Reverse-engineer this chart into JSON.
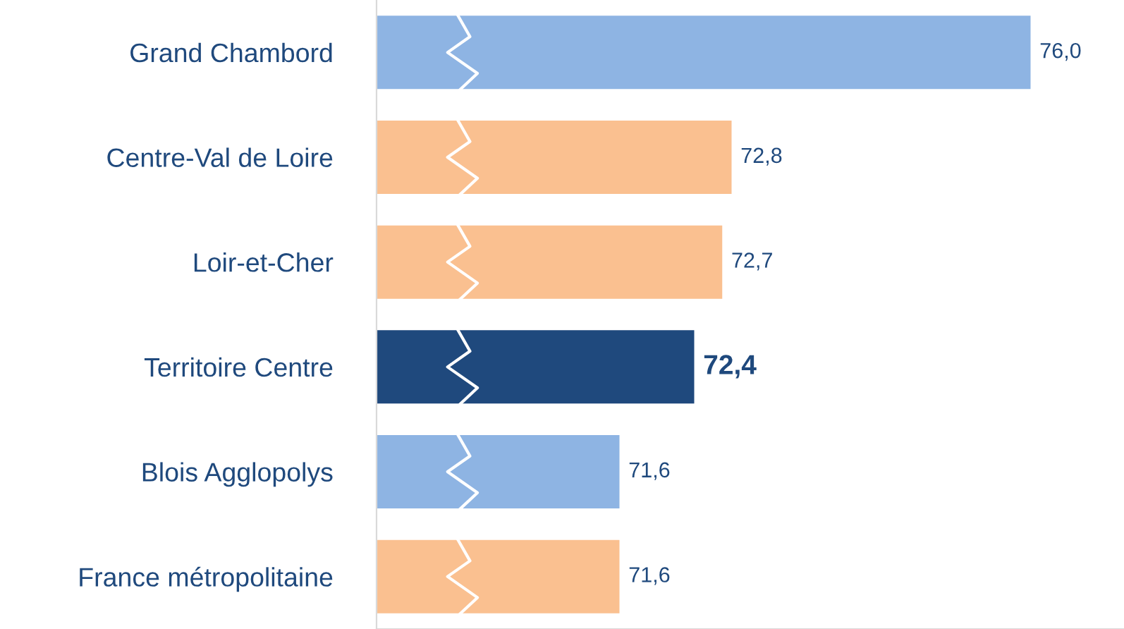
{
  "chart_data": {
    "type": "bar",
    "orientation": "horizontal",
    "categories": [
      "Grand Chambord",
      "Centre-Val de Loire",
      "Loir-et-Cher",
      "Territoire Centre",
      "Blois Agglopolys",
      "France métropolitaine"
    ],
    "values": [
      76.0,
      72.8,
      72.7,
      72.4,
      71.6,
      71.6
    ],
    "colors": [
      "#8eb4e3",
      "#fac090",
      "#fac090",
      "#1f497d",
      "#8eb4e3",
      "#fac090"
    ],
    "value_labels": [
      "76,0",
      "72,8",
      "72,7",
      "72,4",
      "71,6",
      "71,6"
    ],
    "xlim": [
      69,
      77
    ],
    "grid": false
  }
}
